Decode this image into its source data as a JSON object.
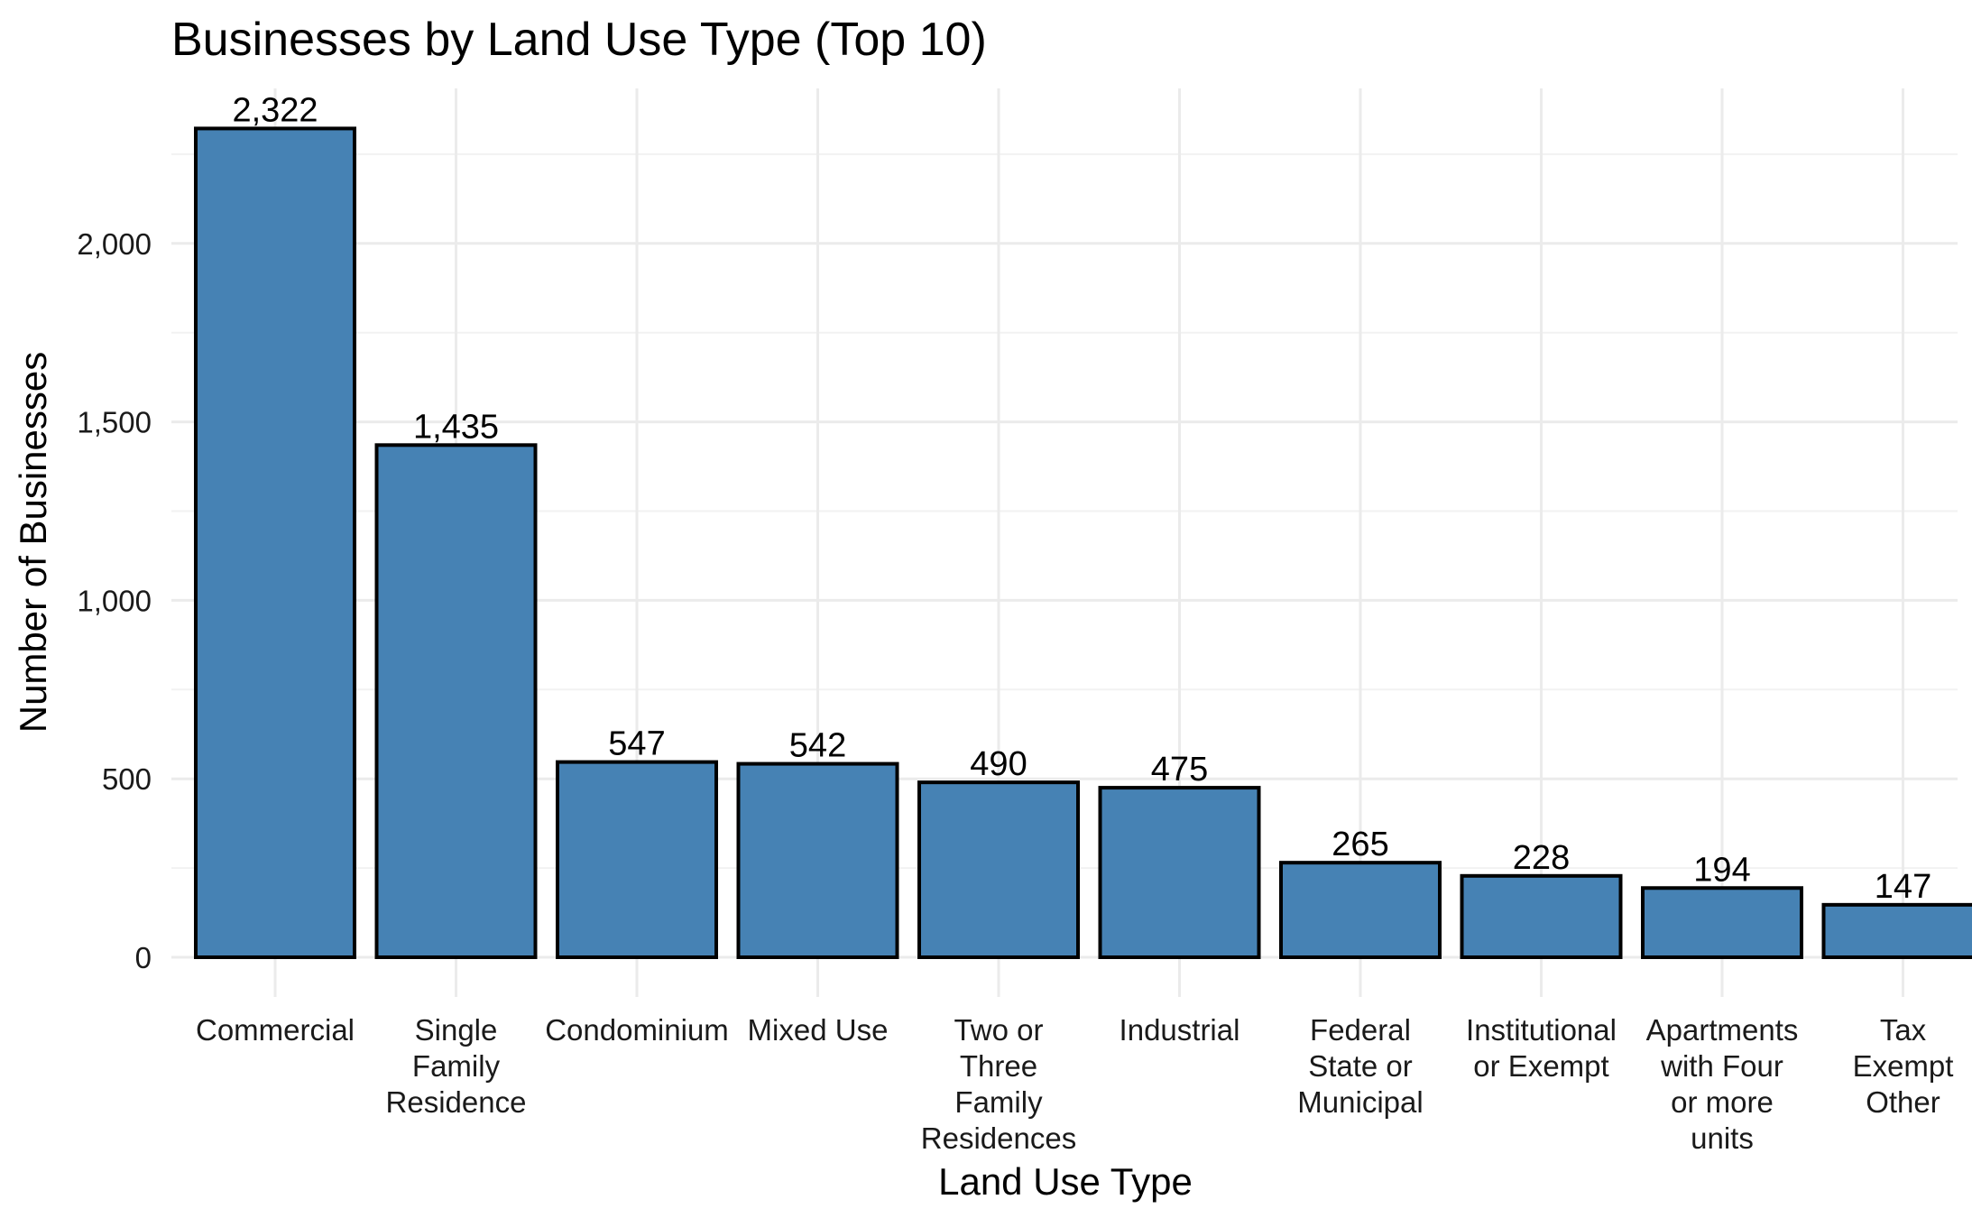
{
  "chart_data": {
    "type": "bar",
    "title": "Businesses by Land Use Type (Top 10)",
    "xlabel": "Land Use Type",
    "ylabel": "Number of Businesses",
    "categories": [
      [
        "Commercial"
      ],
      [
        "Single",
        "Family",
        "Residence"
      ],
      [
        "Condominium"
      ],
      [
        "Mixed Use"
      ],
      [
        "Two or",
        "Three",
        "Family",
        "Residences"
      ],
      [
        "Industrial"
      ],
      [
        "Federal",
        "State or",
        "Municipal"
      ],
      [
        "Institutional",
        "or Exempt"
      ],
      [
        "Apartments",
        "with Four",
        "or more",
        "units"
      ],
      [
        "Tax",
        "Exempt",
        "Other"
      ]
    ],
    "values": [
      2322,
      1435,
      547,
      542,
      490,
      475,
      265,
      228,
      194,
      147
    ],
    "data_labels": [
      "2,322",
      "1,435",
      "547",
      "542",
      "490",
      "475",
      "265",
      "228",
      "194",
      "147"
    ],
    "ylim": [
      0,
      2322
    ],
    "y_ticks": [
      0,
      500,
      1000,
      1500,
      2000
    ],
    "y_tick_labels": [
      "0",
      "500",
      "1,000",
      "1,500",
      "2,000"
    ],
    "bar_color": "#4682B4",
    "bar_border_color": "#000000",
    "grid": true,
    "legend": "none"
  }
}
